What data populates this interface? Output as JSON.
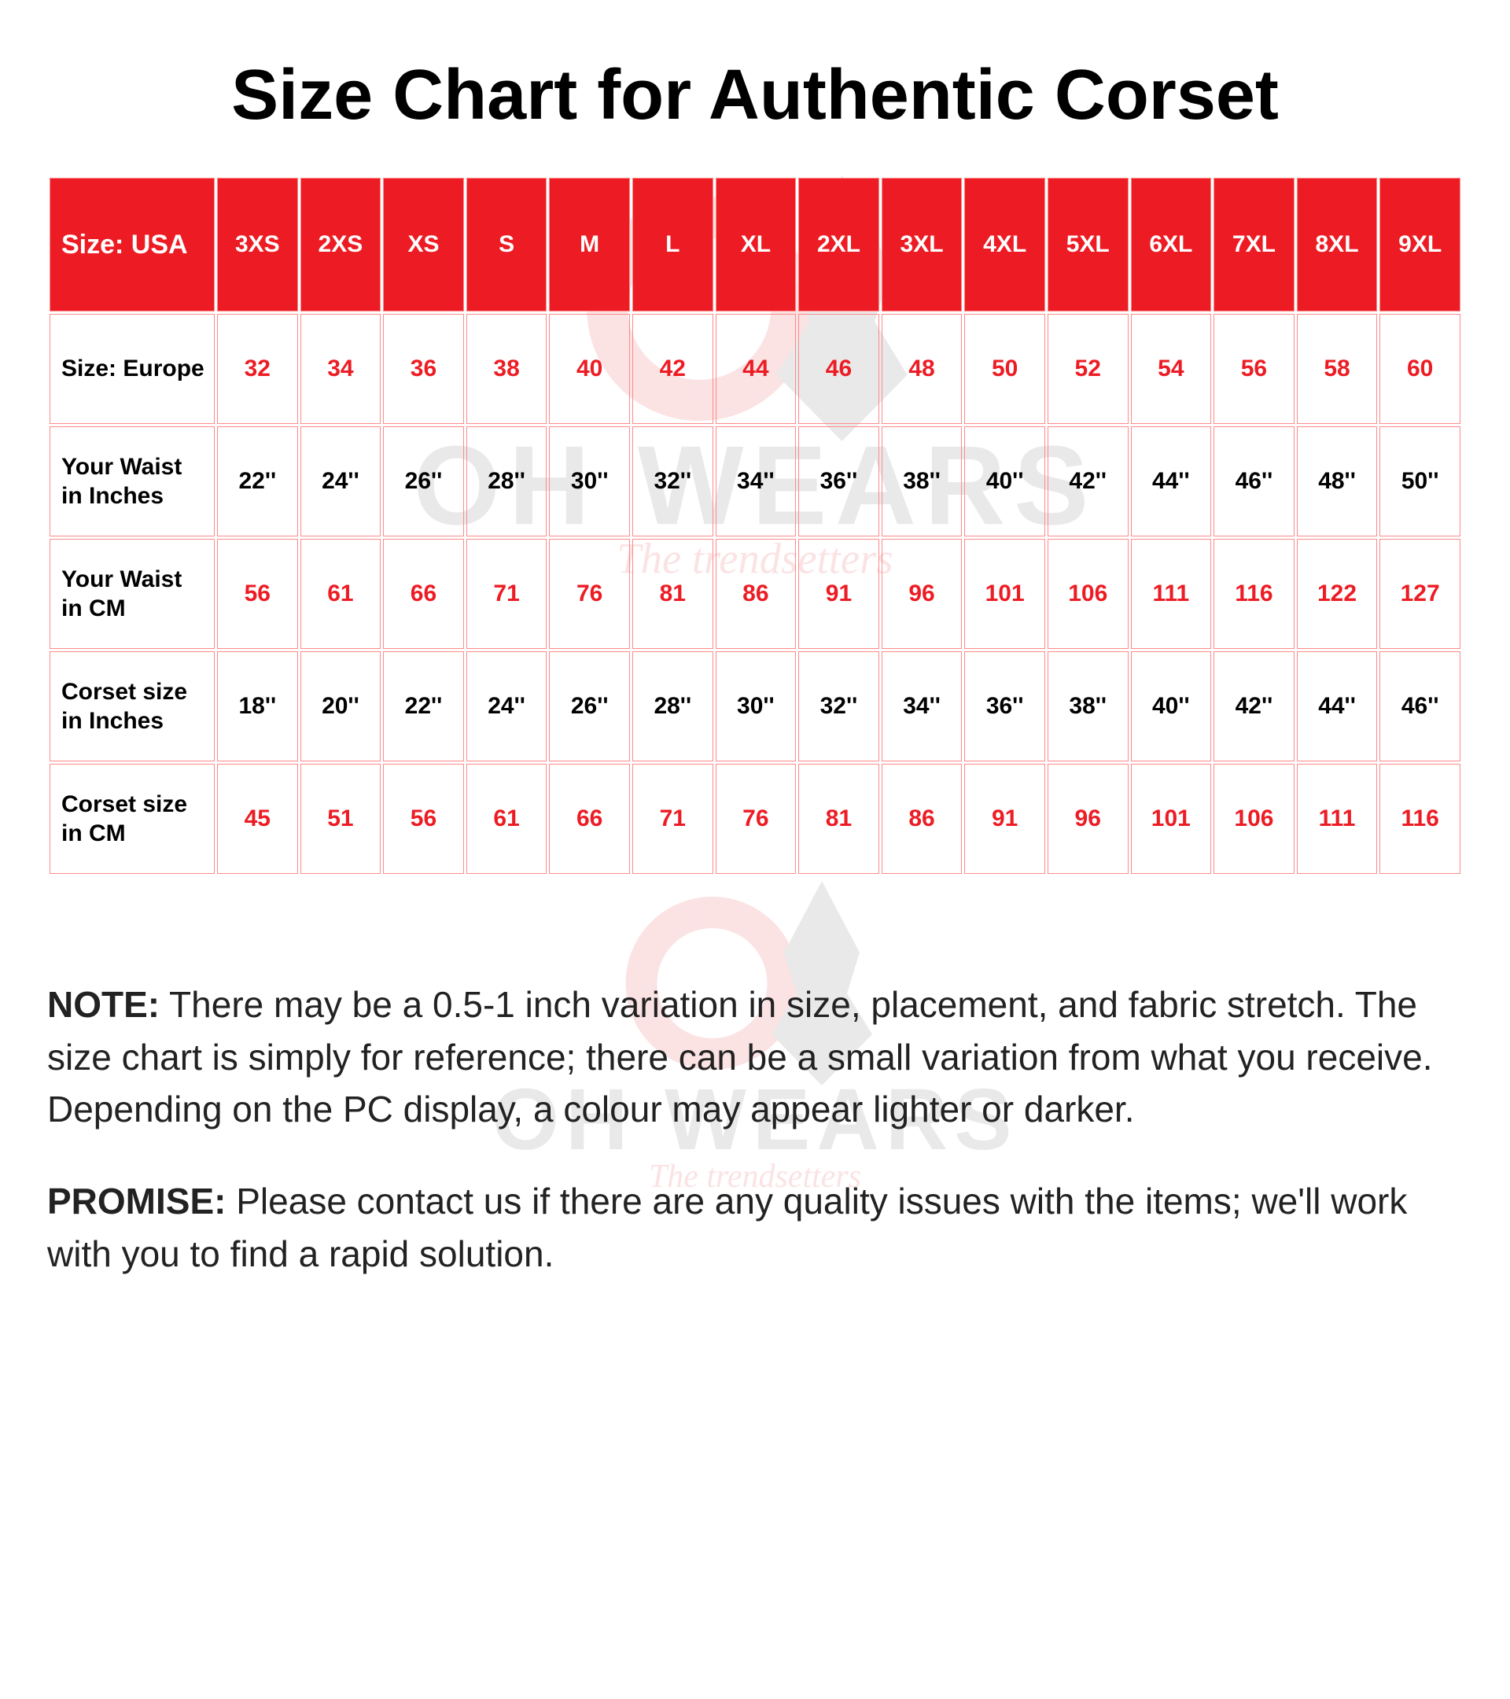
{
  "title": "Size Chart for Authentic Corset",
  "header_bg": "#ed1c24",
  "header_fg": "#ffffff",
  "cell_border": "#ff8a8a",
  "red_text": "#ed1c24",
  "black_text": "#000000",
  "columns_header_label": "Size: USA",
  "sizes_usa": [
    "3XS",
    "2XS",
    "XS",
    "S",
    "M",
    "L",
    "XL",
    "2XL",
    "3XL",
    "4XL",
    "5XL",
    "6XL",
    "7XL",
    "8XL",
    "9XL"
  ],
  "rows": [
    {
      "label": "Size: Europe",
      "color": "red",
      "values": [
        "32",
        "34",
        "36",
        "38",
        "40",
        "42",
        "44",
        "46",
        "48",
        "50",
        "52",
        "54",
        "56",
        "58",
        "60"
      ]
    },
    {
      "label": "Your Waist in Inches",
      "color": "black",
      "values": [
        "22''",
        "24''",
        "26''",
        "28''",
        "30''",
        "32''",
        "34''",
        "36''",
        "38''",
        "40''",
        "42''",
        "44''",
        "46''",
        "48''",
        "50''"
      ]
    },
    {
      "label": "Your Waist in CM",
      "color": "red",
      "values": [
        "56",
        "61",
        "66",
        "71",
        "76",
        "81",
        "86",
        "91",
        "96",
        "101",
        "106",
        "111",
        "116",
        "122",
        "127"
      ]
    },
    {
      "label": "Corset size in Inches",
      "color": "black",
      "values": [
        "18''",
        "20''",
        "22''",
        "24''",
        "26''",
        "28''",
        "30''",
        "32''",
        "34''",
        "36''",
        "38''",
        "40''",
        "42''",
        "44''",
        "46''"
      ]
    },
    {
      "label": "Corset size in CM",
      "color": "red",
      "values": [
        "45",
        "51",
        "56",
        "61",
        "66",
        "71",
        "76",
        "81",
        "86",
        "91",
        "96",
        "101",
        "106",
        "111",
        "116"
      ]
    }
  ],
  "note_label": "NOTE:",
  "note_text": " There may be a 0.5-1 inch variation in size, placement, and fabric stretch. The size chart is simply for reference; there can be a small variation from what you receive. Depending on the PC display, a colour may appear lighter or darker.",
  "promise_label": "PROMISE:",
  "promise_text": " Please contact us if there are any quality issues with the items; we'll work with you to find a rapid solution.",
  "watermark": {
    "brand": "OH WEARS",
    "tagline": "The trendsetters"
  }
}
